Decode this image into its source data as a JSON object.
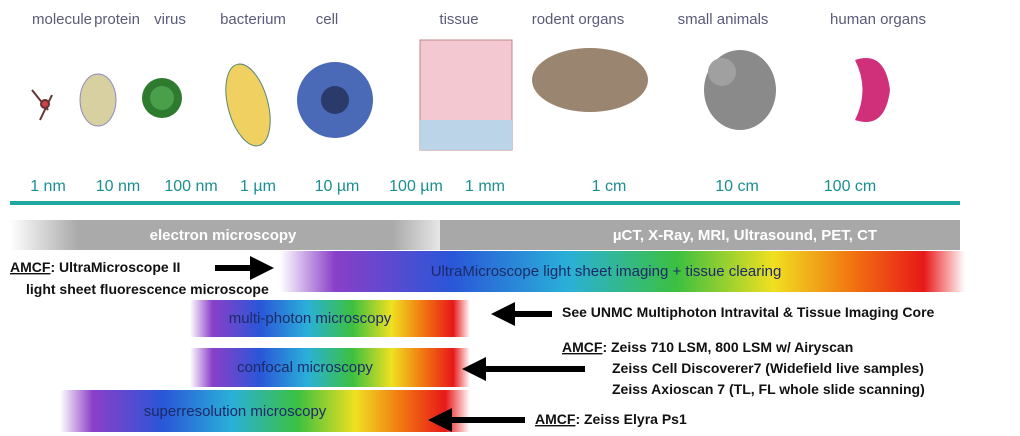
{
  "scale_labels": [
    "molecule",
    "protein",
    "virus",
    "bacterium",
    "cell",
    "tissue",
    "rodent organs",
    "small animals",
    "human organs"
  ],
  "size_ticks": [
    "1 nm",
    "10 nm",
    "100 nm",
    "1 µm",
    "10 µm",
    "100 µm",
    "1 mm",
    "1 cm",
    "10 cm",
    "100 cm"
  ],
  "modalities": {
    "electron": "electron microscopy",
    "imaging": "µCT, X-Ray, MRI, Ultrasound, PET,  CT"
  },
  "techniques": [
    "UltraMicroscope light sheet imaging + tissue clearing",
    "multi-photon microscopy",
    "confocal microscopy",
    "superresolution microscopy"
  ],
  "annotations": [
    {
      "prefix": "AMCF",
      "lines": [
        ": UltraMicroscope II",
        "light sheet fluorescence microscope"
      ]
    },
    {
      "lines": [
        "See UNMC Multiphoton Intravital & Tissue Imaging Core"
      ]
    },
    {
      "prefix": "AMCF",
      "lines": [
        ": Zeiss 710 LSM, 800 LSM w/ Airyscan",
        "Zeiss Cell Discoverer7 (Widefield live samples)",
        "Zeiss Axioscan 7 (TL, FL whole slide scanning)"
      ]
    },
    {
      "prefix": "AMCF",
      "lines": [
        ": Zeiss Elyra Ps1"
      ]
    }
  ]
}
